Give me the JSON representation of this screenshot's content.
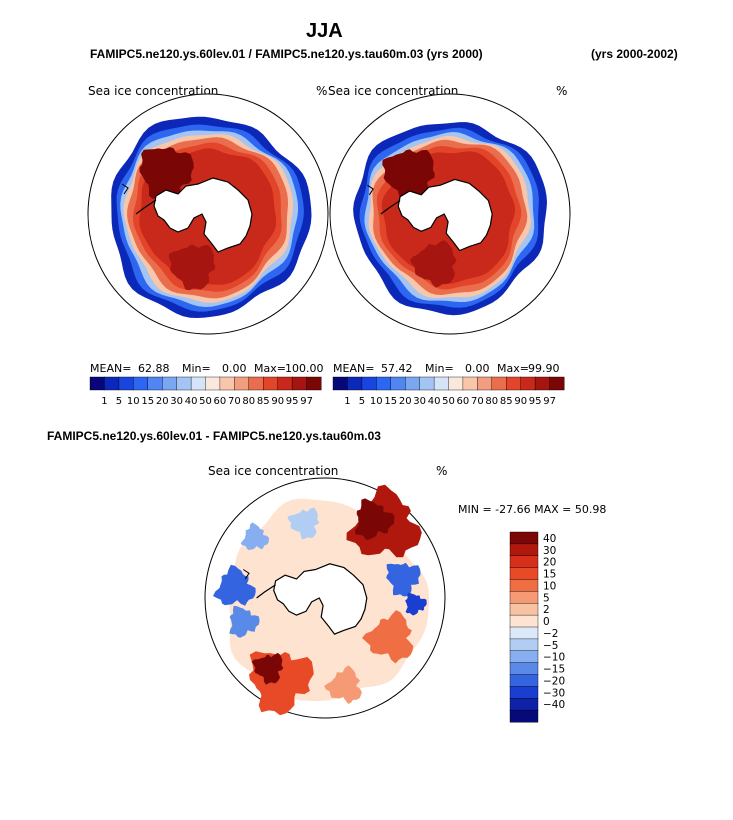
{
  "figure": {
    "season": "JJA",
    "case_header": "FAMIPC5.ne120.ys.60lev.01 / FAMIPC5.ne120.ys.tau60m.03 (yrs 2000)",
    "years_label": "(yrs 2000-2002)",
    "diff_header": "FAMIPC5.ne120.ys.60lev.01 - FAMIPC5.ne120.ys.tau60m.03"
  },
  "chart_data": [
    {
      "type": "heatmap",
      "projection": "south-polar-stereographic",
      "title": "Sea ice concentration",
      "units": "%",
      "stats": {
        "mean_label": "MEAN=",
        "mean": "62.88",
        "min_label": "Min=",
        "min": "0.00",
        "max_label": "Max=",
        "max": "100.00"
      },
      "colorbar": {
        "orientation": "horizontal",
        "levels": [
          "1",
          "5",
          "10",
          "15",
          "20",
          "30",
          "40",
          "50",
          "60",
          "70",
          "80",
          "85",
          "90",
          "95",
          "97"
        ],
        "colors": [
          "#07077a",
          "#0c28b8",
          "#1844e0",
          "#2d66f0",
          "#5186f2",
          "#7aa6f2",
          "#a4c4f3",
          "#d5e4f8",
          "#fbe8dc",
          "#f8c6aa",
          "#f19d7e",
          "#ea6d4d",
          "#e2452a",
          "#c9291a",
          "#a61510",
          "#7a0606"
        ]
      }
    },
    {
      "type": "heatmap",
      "projection": "south-polar-stereographic",
      "title": "Sea ice concentration",
      "units": "%",
      "stats": {
        "mean_label": "MEAN=",
        "mean": "57.42",
        "min_label": "Min=",
        "min": "0.00",
        "max_label": "Max=",
        "max": "99.90"
      },
      "colorbar": {
        "orientation": "horizontal",
        "levels": [
          "1",
          "5",
          "10",
          "15",
          "20",
          "30",
          "40",
          "50",
          "60",
          "70",
          "80",
          "85",
          "90",
          "95",
          "97"
        ],
        "colors": [
          "#07077a",
          "#0c28b8",
          "#1844e0",
          "#2d66f0",
          "#5186f2",
          "#7aa6f2",
          "#a4c4f3",
          "#d5e4f8",
          "#fbe8dc",
          "#f8c6aa",
          "#f19d7e",
          "#ea6d4d",
          "#e2452a",
          "#c9291a",
          "#a61510",
          "#7a0606"
        ]
      }
    },
    {
      "type": "heatmap",
      "projection": "south-polar-stereographic",
      "title": "Sea ice concentration",
      "units": "%",
      "stats_text": "MIN = -27.66 MAX =  50.98",
      "colorbar": {
        "orientation": "vertical",
        "levels": [
          "40",
          "30",
          "20",
          "15",
          "10",
          "5",
          "2",
          "0",
          "−2",
          "−5",
          "−10",
          "−15",
          "−20",
          "−30",
          "−40"
        ],
        "colors": [
          "#7a0606",
          "#b0180e",
          "#d6301a",
          "#e84a28",
          "#f06e44",
          "#f59a74",
          "#f9c2a2",
          "#fde3d0",
          "#dbe8f8",
          "#b2cdf4",
          "#86aef0",
          "#5a8ae8",
          "#3464e0",
          "#1a3fd0",
          "#0e22a8",
          "#060a78"
        ]
      }
    }
  ]
}
